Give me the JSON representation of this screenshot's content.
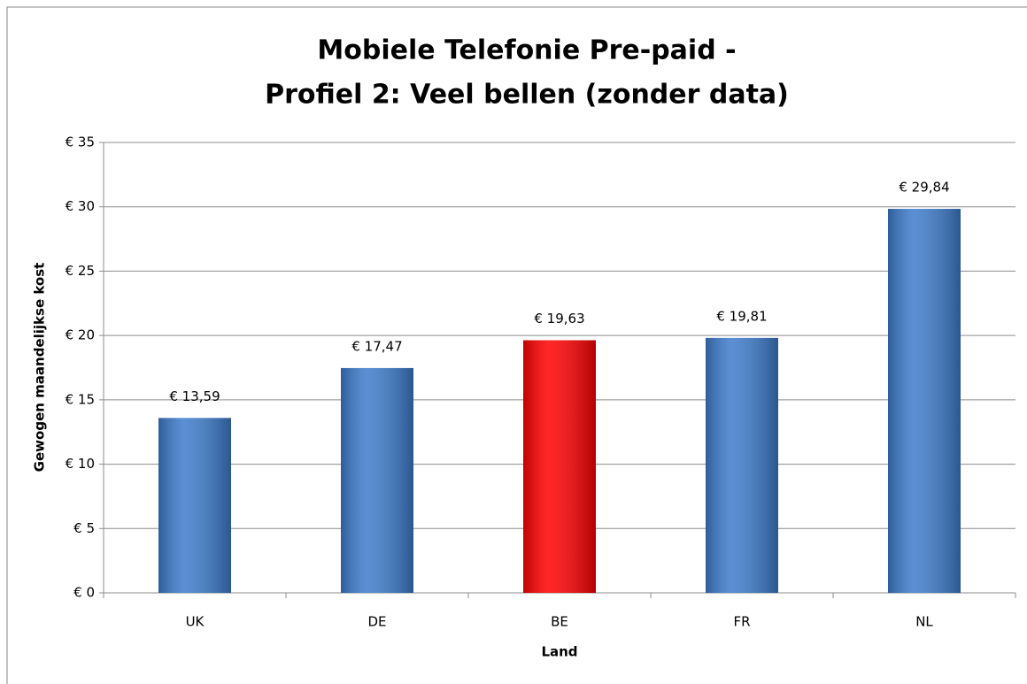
{
  "chart_data": {
    "type": "bar",
    "title": [
      "Mobiele Telefonie Pre-paid -",
      "Profiel 2: Veel bellen (zonder data)"
    ],
    "y_label": "Gewogen maandelijkse kost",
    "x_label": "Land",
    "categories": [
      "UK",
      "DE",
      "BE",
      "FR",
      "NL"
    ],
    "values": [
      13.59,
      17.47,
      19.63,
      19.81,
      29.84
    ],
    "value_labels": [
      "€ 13,59",
      "€ 17,47",
      "€ 19,63",
      "€ 19,81",
      "€ 29,84"
    ],
    "colors": [
      "#3d7ccc",
      "#3d7ccc",
      "#ff0000",
      "#3d7ccc",
      "#3d7ccc"
    ],
    "ylim": [
      0,
      35
    ],
    "yticks": [
      {
        "value": 0,
        "label": "€ 0"
      },
      {
        "value": 5,
        "label": "€ 5"
      },
      {
        "value": 10,
        "label": "€ 10"
      },
      {
        "value": 15,
        "label": "€ 15"
      },
      {
        "value": 20,
        "label": "€ 20"
      },
      {
        "value": 25,
        "label": "€ 25"
      },
      {
        "value": 30,
        "label": "€ 30"
      },
      {
        "value": 35,
        "label": "€ 35"
      }
    ],
    "grid": true
  }
}
